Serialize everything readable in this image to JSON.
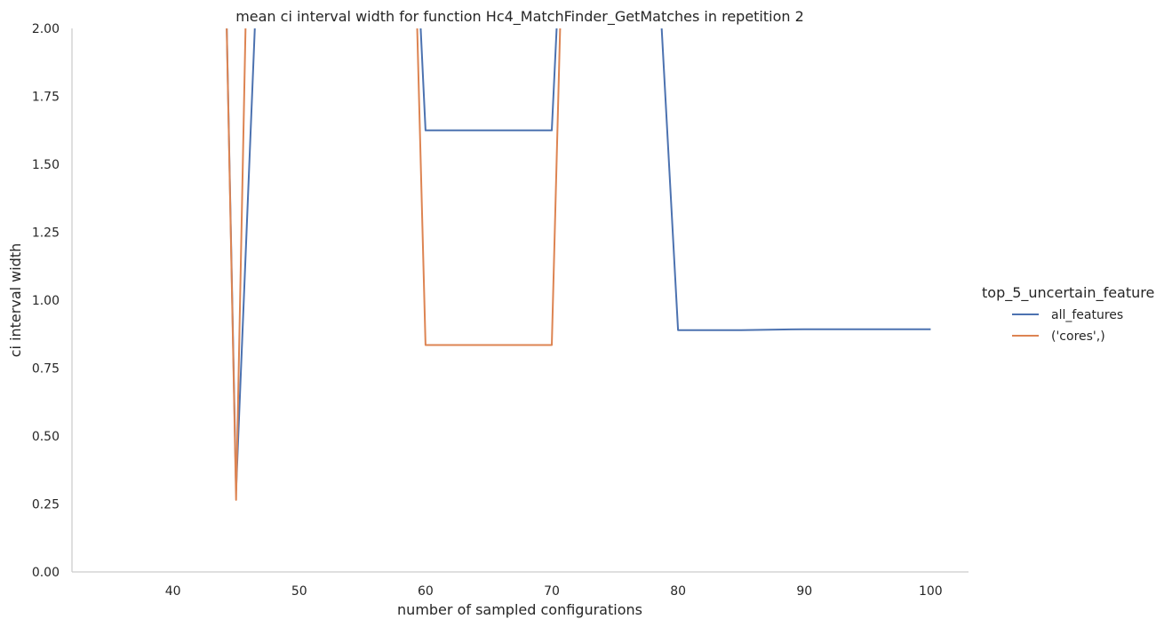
{
  "chart_data": {
    "type": "line",
    "title": "mean ci interval width for function Hc4_MatchFinder_GetMatches in repetition 2",
    "xlabel": "number of sampled configurations",
    "ylabel": "ci interval width",
    "xlim": [
      32,
      103
    ],
    "ylim": [
      0,
      2
    ],
    "x_ticks": [
      40,
      50,
      60,
      70,
      80,
      90,
      100
    ],
    "y_ticks": [
      0.0,
      0.25,
      0.5,
      0.75,
      1.0,
      1.25,
      1.5,
      1.75,
      2.0
    ],
    "x_tick_labels": [
      "40",
      "50",
      "60",
      "70",
      "80",
      "90",
      "100"
    ],
    "y_tick_labels": [
      "0.00",
      "0.25",
      "0.50",
      "0.75",
      "1.00",
      "1.25",
      "1.50",
      "1.75",
      "2.00"
    ],
    "grid": false,
    "legend": {
      "title": "top_5_uncertain_feature",
      "position": "right"
    },
    "series": [
      {
        "name": "all_features",
        "color": "#4c72b0",
        "x": [
          44,
          45,
          47,
          59,
          60,
          70,
          71,
          78,
          80,
          85,
          90,
          100
        ],
        "y": [
          2.6,
          0.3,
          2.6,
          2.6,
          1.625,
          1.625,
          2.6,
          2.6,
          0.89,
          0.89,
          0.893,
          0.893
        ]
      },
      {
        "name": "('cores',)",
        "color": "#dd8452",
        "x": [
          44,
          45,
          46,
          59,
          60,
          70,
          71
        ],
        "y": [
          2.6,
          0.265,
          2.6,
          2.6,
          0.835,
          0.835,
          2.6
        ]
      }
    ]
  }
}
